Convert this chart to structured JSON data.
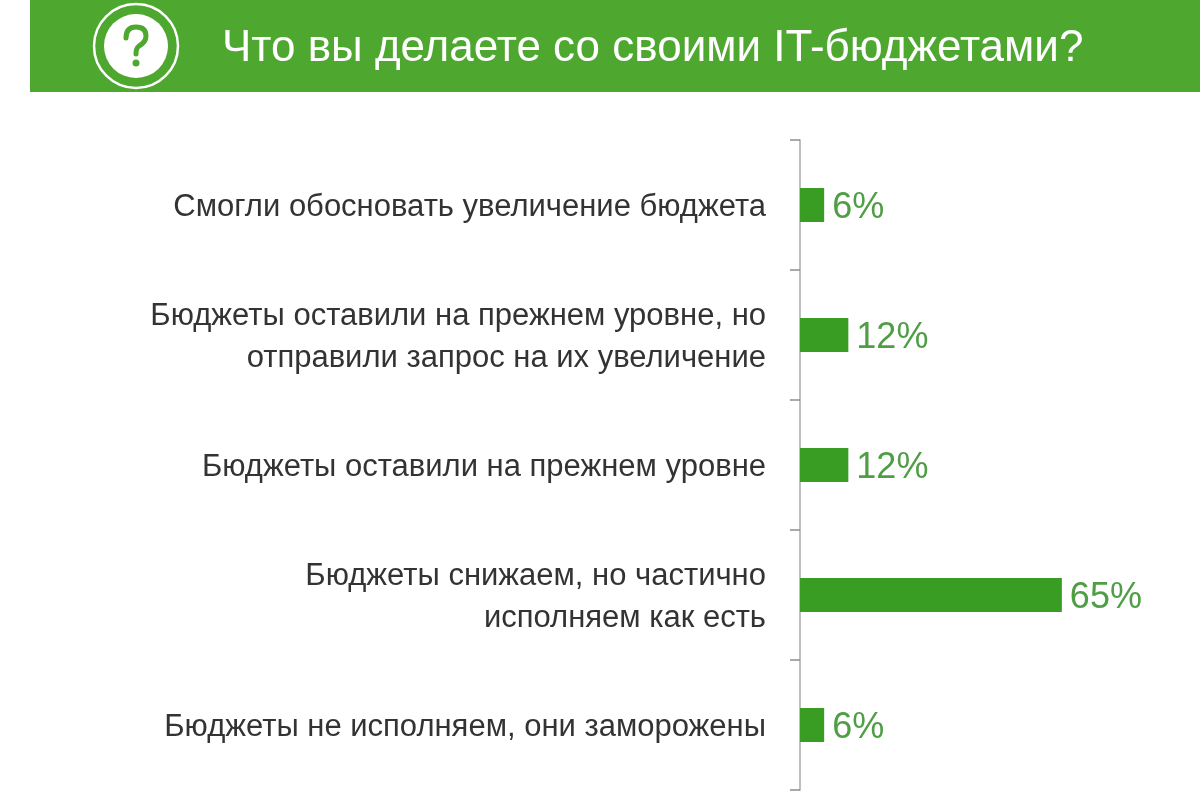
{
  "chart_data": {
    "type": "bar",
    "orientation": "horizontal",
    "title": "Что вы делаете со своими IT-бюджетами?",
    "categories": [
      "Смогли обосновать увеличение бюджета",
      "Бюджеты оставили на прежнем уровне, но отправили запрос на их увеличение",
      "Бюджеты оставили на прежнем уровне",
      "Бюджеты снижаем, но частично исполняем как есть",
      "Бюджеты не исполняем, они заморожены"
    ],
    "values": [
      6,
      12,
      12,
      65,
      6
    ],
    "color": "#3a9d23",
    "value_labels": [
      "6%",
      "12%",
      "12%",
      "65%",
      "6%"
    ]
  }
}
